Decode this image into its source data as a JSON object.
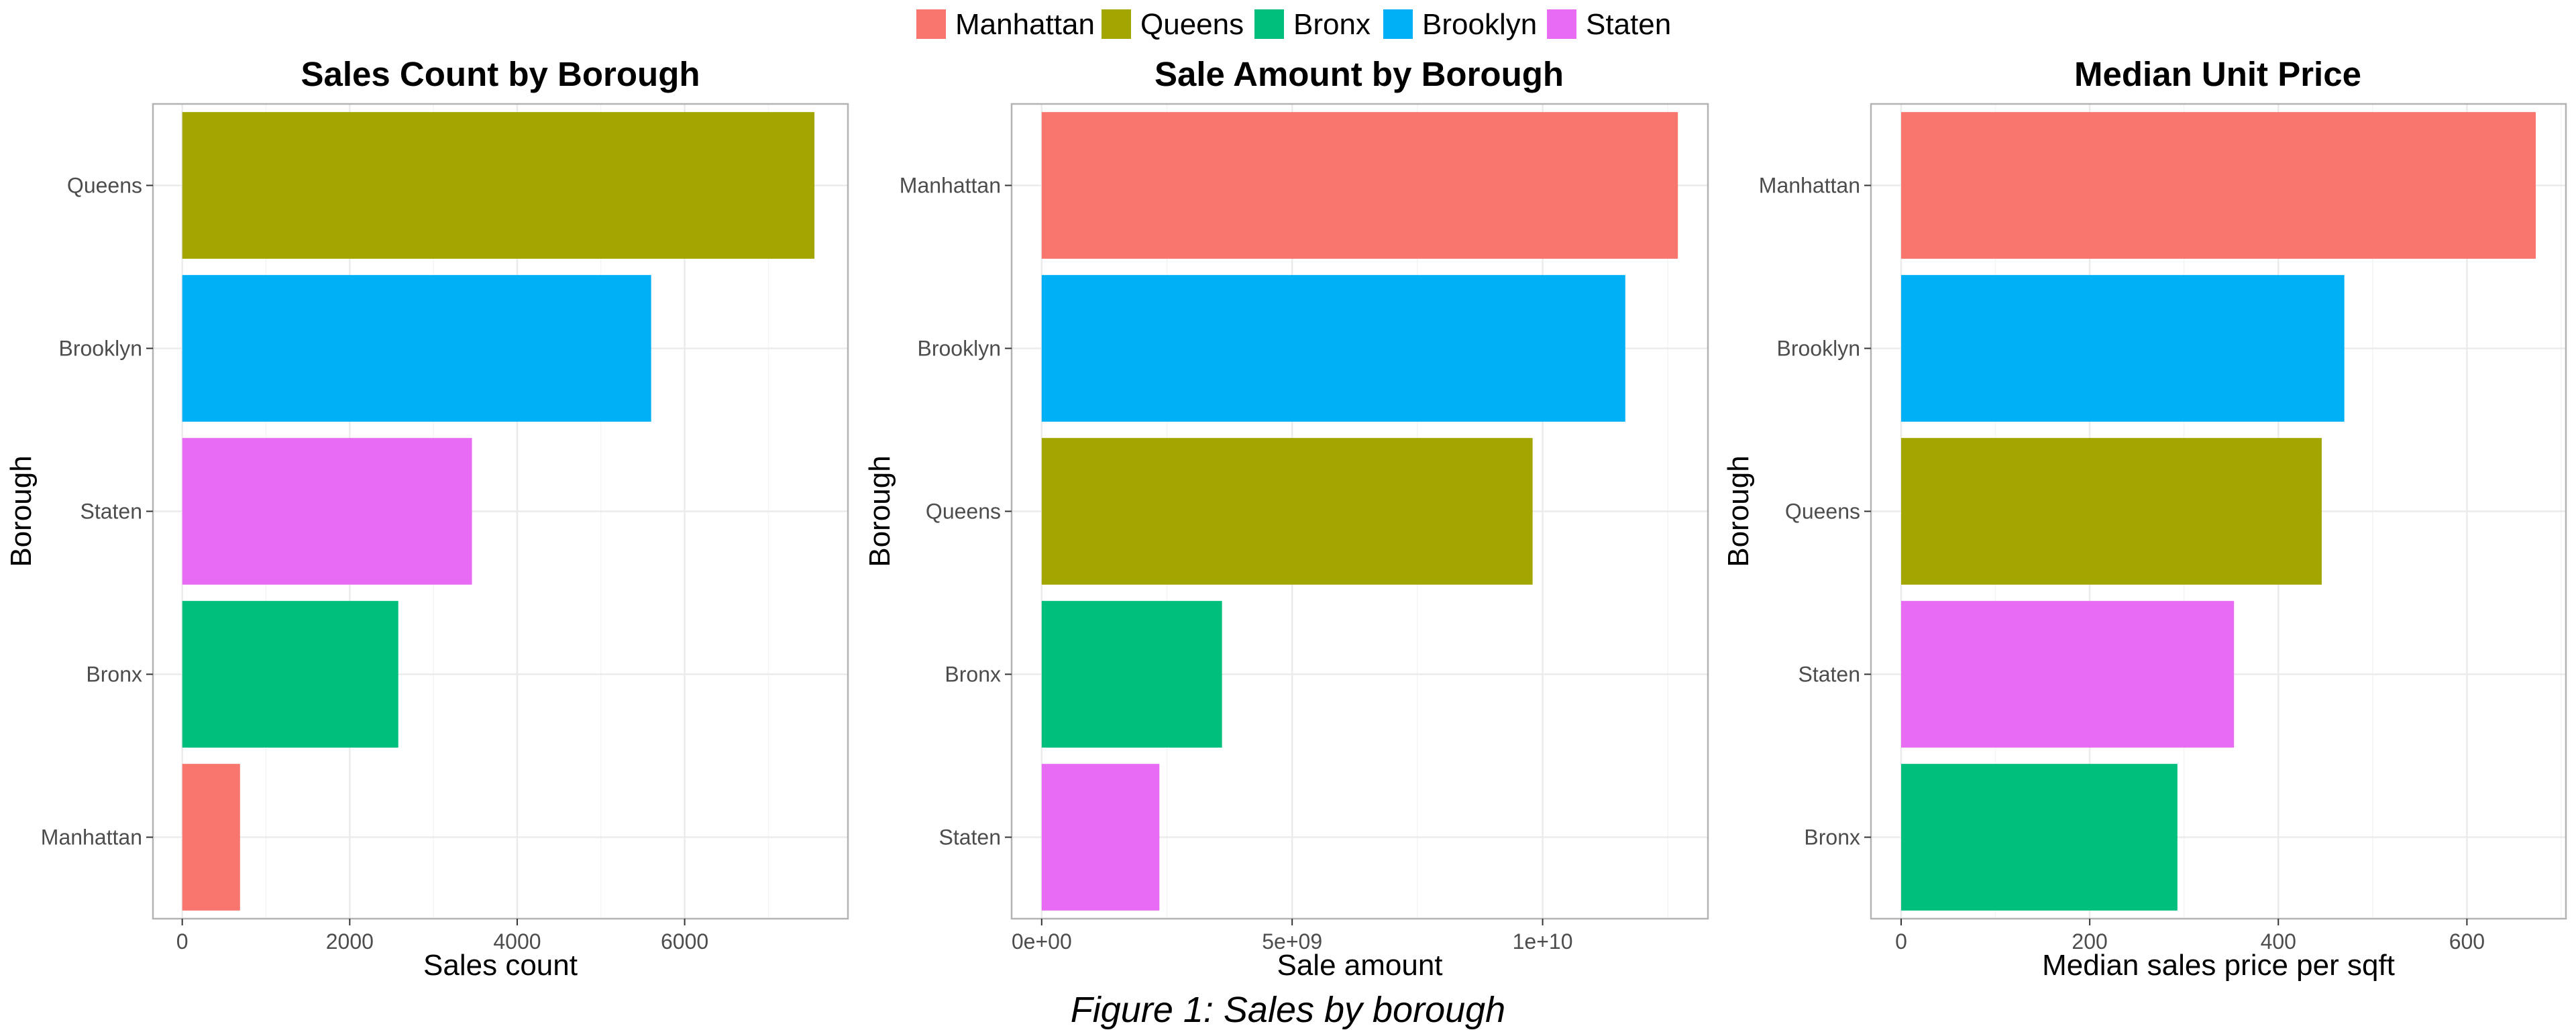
{
  "legend": {
    "items": [
      {
        "label": "Manhattan",
        "color": "#F8766D"
      },
      {
        "label": "Queens",
        "color": "#A3A500"
      },
      {
        "label": "Bronx",
        "color": "#00BF7D"
      },
      {
        "label": "Brooklyn",
        "color": "#00B0F6"
      },
      {
        "label": "Staten",
        "color": "#E76BF3"
      }
    ]
  },
  "caption": "Figure 1: Sales by borough",
  "chart_data": [
    {
      "type": "bar",
      "orientation": "horizontal",
      "title": "Sales Count by Borough",
      "xlabel": "Sales count",
      "ylabel": "Borough",
      "categories": [
        "Queens",
        "Brooklyn",
        "Staten",
        "Bronx",
        "Manhattan"
      ],
      "values": [
        7550,
        5600,
        3460,
        2580,
        690
      ],
      "xlim": [
        -350,
        7950
      ],
      "xticks": [
        0,
        2000,
        4000,
        6000
      ],
      "xtick_labels": [
        "0",
        "2000",
        "4000",
        "6000"
      ],
      "grid": true,
      "legend_position": "top"
    },
    {
      "type": "bar",
      "orientation": "horizontal",
      "title": "Sale Amount by Borough",
      "xlabel": "Sale amount",
      "ylabel": "Borough",
      "categories": [
        "Manhattan",
        "Brooklyn",
        "Queens",
        "Bronx",
        "Staten"
      ],
      "values": [
        12700000000,
        11650000000,
        9800000000,
        3600000000,
        2350000000
      ],
      "xlim": [
        -600000000,
        13300000000
      ],
      "xticks": [
        0,
        5000000000,
        10000000000
      ],
      "xtick_labels": [
        "0e+00",
        "5e+09",
        "1e+10"
      ],
      "grid": true,
      "legend_position": "top"
    },
    {
      "type": "bar",
      "orientation": "horizontal",
      "title": "Median Unit Price",
      "xlabel": "Median sales price per sqft",
      "ylabel": "Borough",
      "categories": [
        "Manhattan",
        "Brooklyn",
        "Queens",
        "Staten",
        "Bronx"
      ],
      "values": [
        673,
        470,
        446,
        353,
        293
      ],
      "xlim": [
        -32,
        705
      ],
      "xticks": [
        0,
        200,
        400,
        600
      ],
      "xtick_labels": [
        "0",
        "200",
        "400",
        "600"
      ],
      "grid": true,
      "legend_position": "top"
    }
  ]
}
